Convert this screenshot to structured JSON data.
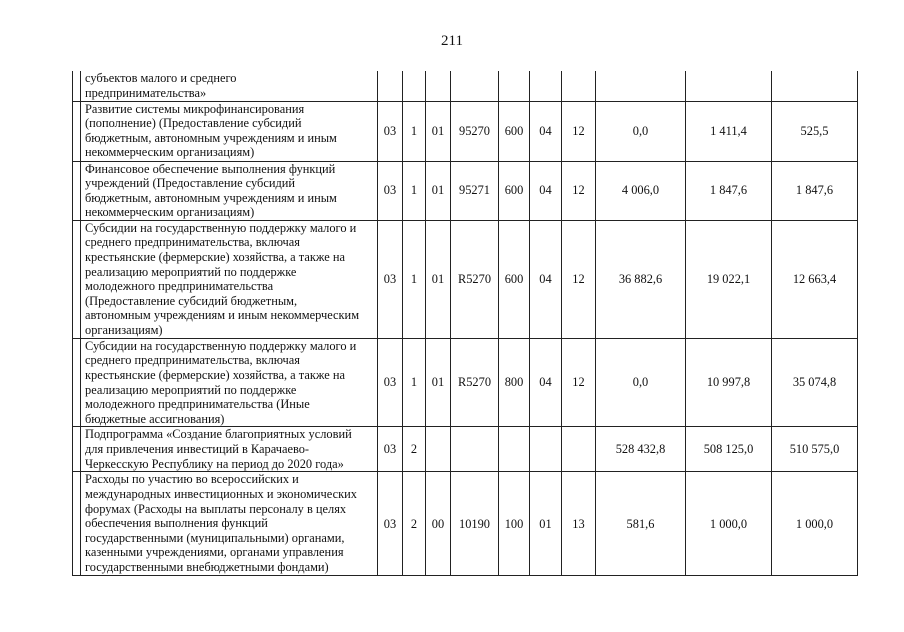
{
  "page_number": "211",
  "rows": [
    {
      "desc": "субъектов малого и среднего\nпредпринимательства»",
      "c": [
        "",
        "",
        "",
        "",
        "",
        "",
        ""
      ],
      "v": [
        "",
        "",
        ""
      ]
    },
    {
      "desc": "Развитие системы микрофинансирования\n(пополнение) (Предоставление субсидий\nбюджетным, автономным учреждениям и иным\nнекоммерческим организациям)",
      "c": [
        "03",
        "1",
        "01",
        "95270",
        "600",
        "04",
        "12"
      ],
      "v": [
        "0,0",
        "1 411,4",
        "525,5"
      ]
    },
    {
      "desc": "Финансовое обеспечение выполнения функций\nучреждений (Предоставление субсидий\nбюджетным, автономным учреждениям и иным\nнекоммерческим организациям)",
      "c": [
        "03",
        "1",
        "01",
        "95271",
        "600",
        "04",
        "12"
      ],
      "v": [
        "4 006,0",
        "1 847,6",
        "1 847,6"
      ]
    },
    {
      "desc": "Субсидии на государственную поддержку малого и\nсреднего предпринимательства, включая\nкрестьянские (фермерские) хозяйства, а также на\nреализацию мероприятий по поддержке\nмолодежного предпринимательства\n(Предоставление субсидий бюджетным,\nавтономным учреждениям и иным некоммерческим\nорганизациям)",
      "c": [
        "03",
        "1",
        "01",
        "R5270",
        "600",
        "04",
        "12"
      ],
      "v": [
        "36 882,6",
        "19 022,1",
        "12 663,4"
      ]
    },
    {
      "desc": "Субсидии на государственную поддержку малого и\nсреднего предпринимательства, включая\nкрестьянские (фермерские) хозяйства, а также на\nреализацию мероприятий по поддержке\nмолодежного предпринимательства (Иные\nбюджетные ассигнования)",
      "c": [
        "03",
        "1",
        "01",
        "R5270",
        "800",
        "04",
        "12"
      ],
      "v": [
        "0,0",
        "10 997,8",
        "35 074,8"
      ]
    },
    {
      "desc": "Подпрограмма «Создание благоприятных условий\nдля привлечения инвестиций в Карачаево-\nЧеркесскую Республику на период до 2020 года»",
      "c": [
        "03",
        "2",
        "",
        "",
        "",
        "",
        ""
      ],
      "v": [
        "528 432,8",
        "508 125,0",
        "510 575,0"
      ]
    },
    {
      "desc": "Расходы по участию во всероссийских и\nмеждународных инвестиционных и экономических\nфорумах (Расходы на выплаты персоналу в целях\nобеспечения выполнения функций\nгосударственными (муниципальными) органами,\nказенными учреждениями, органами управления\nгосударственными внебюджетными фондами)",
      "c": [
        "03",
        "2",
        "00",
        "10190",
        "100",
        "01",
        "13"
      ],
      "v": [
        "581,6",
        "1 000,0",
        "1 000,0"
      ]
    }
  ]
}
